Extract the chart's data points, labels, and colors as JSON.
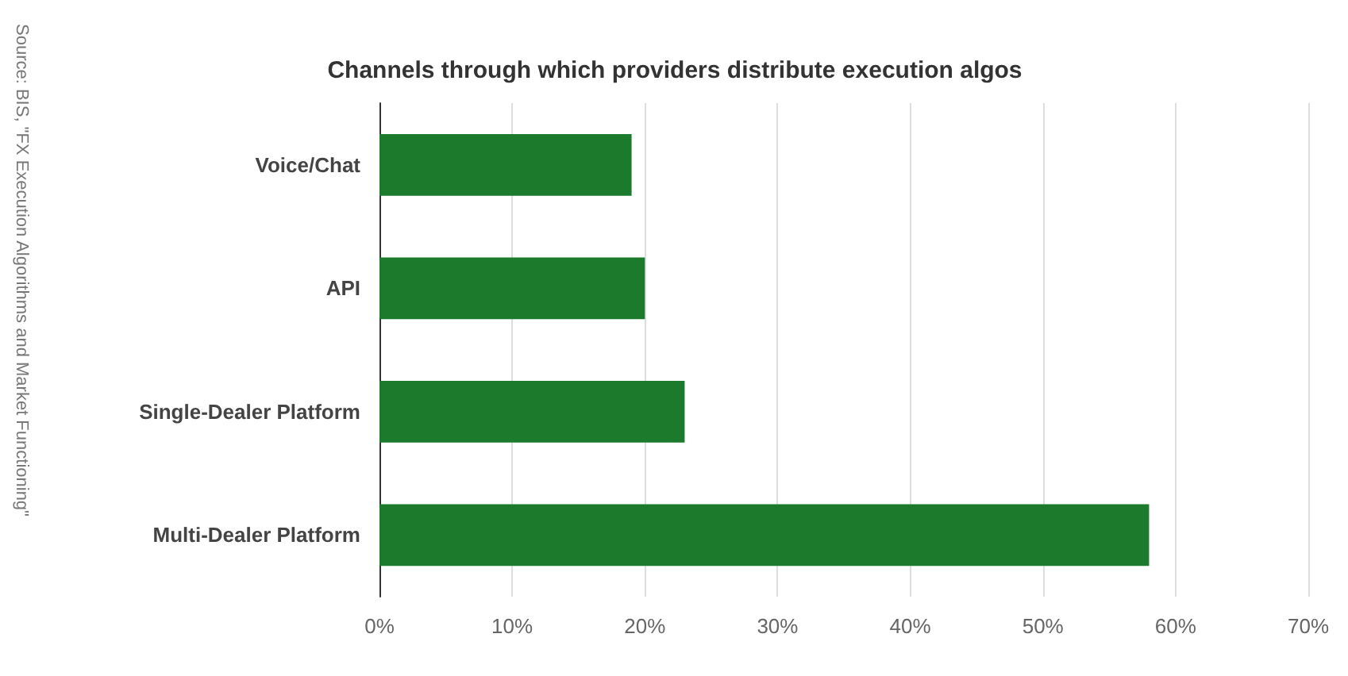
{
  "chart_data": {
    "type": "bar",
    "orientation": "horizontal",
    "title": "Channels through which providers distribute execution algos",
    "categories": [
      "Voice/Chat",
      "API",
      "Single-Dealer Platform",
      "Multi-Dealer Platform"
    ],
    "values": [
      19,
      20,
      23,
      58
    ],
    "color": "#1b7a2b",
    "xlim": [
      0,
      70
    ],
    "xticks": [
      {
        "value": 0,
        "label": "0%"
      },
      {
        "value": 10,
        "label": "10%"
      },
      {
        "value": 20,
        "label": "20%"
      },
      {
        "value": 30,
        "label": "30%"
      },
      {
        "value": 40,
        "label": "40%"
      },
      {
        "value": 50,
        "label": "50%"
      },
      {
        "value": 60,
        "label": "60%"
      },
      {
        "value": 70,
        "label": "70%"
      }
    ],
    "grid": "x",
    "annotations": [
      "Source: BIS, \"FX Execution Algorithms and Market Functioning\""
    ]
  }
}
